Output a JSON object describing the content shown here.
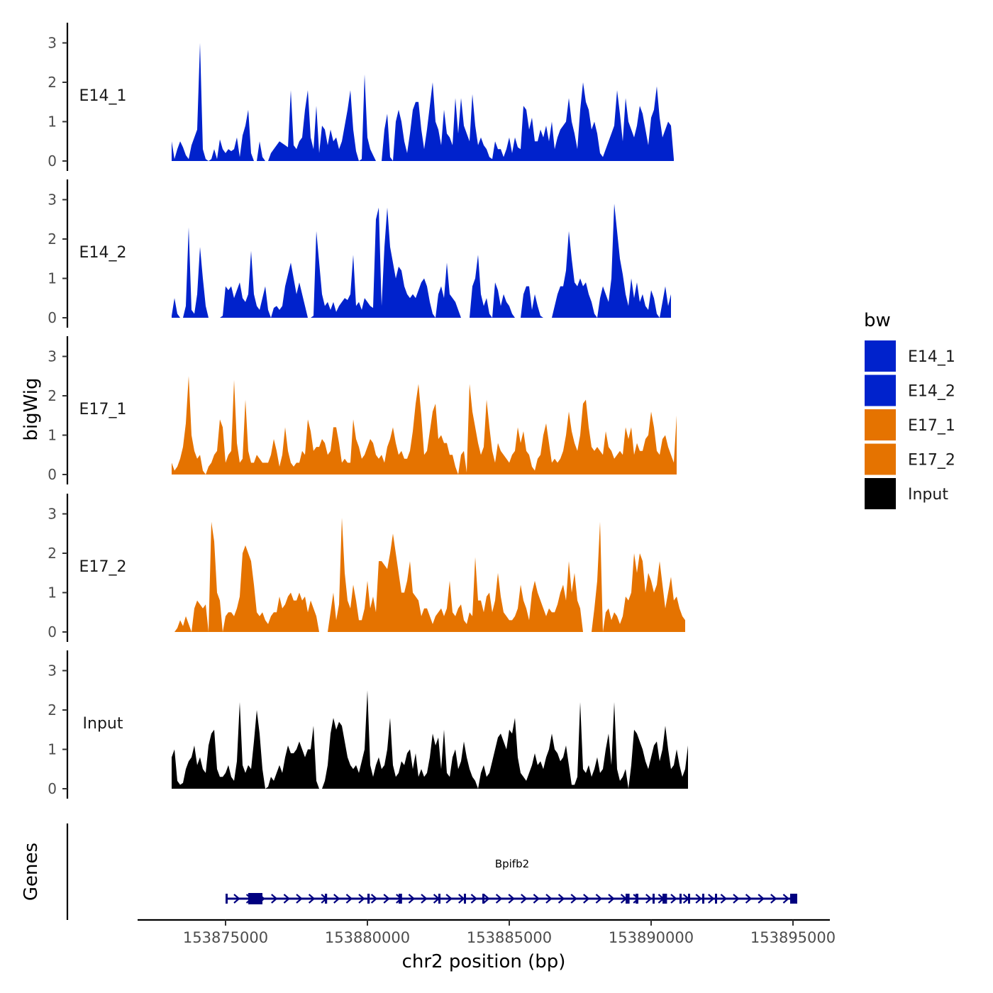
{
  "chart_data": {
    "type": "area",
    "title": "",
    "ylabel": "bigWig",
    "xlabel": "chr2 position (bp)",
    "ylim": [
      0,
      3.5
    ],
    "y_ticks": [
      0,
      1,
      2,
      3
    ],
    "xlim": [
      153871965,
      153895365
    ],
    "x_ticks": [
      153875000,
      153880000,
      153885000,
      153890000,
      153895000
    ],
    "x_tick_labels": [
      "153875000",
      "153880000",
      "153885000",
      "153890000",
      "153895000"
    ],
    "legend": {
      "title": "bw",
      "position": "right",
      "entries": [
        {
          "label": "E14_1",
          "color": "#0022CC"
        },
        {
          "label": "E14_2",
          "color": "#0022CC"
        },
        {
          "label": "E17_1",
          "color": "#E57300"
        },
        {
          "label": "E17_2",
          "color": "#E57300"
        },
        {
          "label": "Input",
          "color": "#000000"
        }
      ]
    },
    "series": [
      {
        "name": "E14_1",
        "color": "#0022CC",
        "x_start": 153873100,
        "step": 100,
        "values": [
          0.5,
          0.05,
          0.3,
          0.5,
          0.35,
          0.15,
          0.05,
          0.4,
          0.6,
          0.8,
          3.0,
          0.3,
          0.05,
          0.0,
          0.05,
          0.3,
          0.05,
          0.55,
          0.3,
          0.2,
          0.3,
          0.25,
          0.3,
          0.6,
          0.1,
          0.65,
          0.9,
          1.3,
          0.2,
          0.0,
          0.0,
          0.5,
          0.1,
          0.0,
          0.0,
          0.2,
          0.3,
          0.4,
          0.5,
          0.45,
          0.4,
          0.35,
          1.8,
          0.4,
          0.3,
          0.5,
          0.6,
          1.3,
          1.8,
          0.6,
          0.3,
          1.4,
          0.2,
          0.9,
          0.8,
          0.4,
          0.8,
          0.5,
          0.6,
          0.3,
          0.5,
          0.9,
          1.3,
          1.8,
          0.8,
          0.25,
          0.0,
          0.05,
          2.2,
          0.6,
          0.3,
          0.15,
          0.0,
          0.0,
          0.0,
          0.8,
          1.2,
          0.1,
          0.0,
          1.0,
          1.3,
          1.0,
          0.5,
          0.2,
          0.7,
          1.3,
          1.5,
          1.5,
          0.8,
          0.3,
          0.8,
          1.4,
          2.0,
          1.0,
          0.8,
          0.4,
          1.3,
          0.7,
          0.6,
          0.4,
          1.6,
          0.7,
          1.6,
          0.9,
          0.7,
          0.5,
          1.7,
          0.9,
          0.4,
          0.6,
          0.4,
          0.3,
          0.1,
          0.05,
          0.5,
          0.3,
          0.3,
          0.1,
          0.3,
          0.6,
          0.2,
          0.6,
          0.35,
          0.3,
          1.4,
          1.3,
          0.8,
          1.1,
          0.5,
          0.5,
          0.8,
          0.6,
          0.9,
          0.5,
          1.0,
          0.3,
          0.6,
          0.8,
          0.9,
          1.0,
          1.6,
          1.0,
          0.7,
          0.3,
          1.3,
          2.0,
          1.5,
          1.3,
          0.8,
          1.0,
          0.7,
          0.2,
          0.1,
          0.3,
          0.5,
          0.7,
          0.9,
          1.8,
          1.2,
          0.5,
          1.6,
          1.0,
          0.8,
          0.6,
          0.9,
          1.4,
          1.2,
          0.8,
          0.4,
          1.1,
          1.3,
          1.9,
          1.1,
          0.6,
          0.8,
          1.0,
          0.9,
          0.05
        ]
      },
      {
        "name": "E14_2",
        "color": "#0022CC",
        "x_start": 153873100,
        "step": 100,
        "values": [
          0.05,
          0.5,
          0.1,
          0.0,
          0.0,
          0.3,
          2.3,
          0.2,
          0.1,
          0.6,
          1.8,
          1.0,
          0.3,
          0.0,
          0.0,
          0.0,
          0.0,
          0.0,
          0.05,
          0.8,
          0.7,
          0.8,
          0.5,
          0.7,
          0.9,
          0.5,
          0.4,
          0.6,
          1.7,
          0.6,
          0.3,
          0.2,
          0.5,
          0.8,
          0.2,
          0.0,
          0.25,
          0.3,
          0.2,
          0.3,
          0.8,
          1.1,
          1.4,
          1.0,
          0.6,
          0.9,
          0.6,
          0.3,
          0.0,
          0.0,
          0.05,
          2.2,
          1.4,
          0.6,
          0.3,
          0.4,
          0.2,
          0.4,
          0.15,
          0.3,
          0.4,
          0.5,
          0.45,
          0.6,
          1.6,
          0.3,
          0.4,
          0.2,
          0.5,
          0.4,
          0.3,
          0.25,
          2.5,
          2.8,
          0.3,
          1.8,
          2.8,
          1.8,
          1.4,
          1.0,
          1.3,
          1.2,
          0.8,
          0.6,
          0.5,
          0.6,
          0.5,
          0.7,
          0.9,
          1.0,
          0.8,
          0.4,
          0.1,
          0.0,
          0.6,
          0.8,
          0.5,
          1.4,
          0.6,
          0.5,
          0.4,
          0.2,
          0.0,
          0.0,
          0.0,
          0.0,
          0.8,
          1.0,
          1.6,
          0.6,
          0.3,
          0.5,
          0.1,
          0.0,
          0.9,
          0.7,
          0.3,
          0.6,
          0.4,
          0.3,
          0.1,
          0.0,
          0.0,
          0.0,
          0.6,
          0.8,
          0.8,
          0.2,
          0.6,
          0.3,
          0.05,
          0.0,
          0.0,
          0.0,
          0.0,
          0.3,
          0.6,
          0.8,
          0.8,
          1.2,
          2.2,
          1.5,
          0.9,
          0.8,
          1.0,
          0.8,
          0.9,
          0.6,
          0.4,
          0.1,
          0.0,
          0.5,
          0.8,
          0.6,
          0.4,
          1.0,
          2.9,
          2.2,
          1.5,
          1.1,
          0.6,
          0.3,
          1.0,
          0.5,
          0.9,
          0.4,
          0.6,
          0.3,
          0.2,
          0.7,
          0.5,
          0.1,
          0.0,
          0.4,
          0.8,
          0.3,
          0.6
        ]
      },
      {
        "name": "E17_1",
        "color": "#E57300",
        "x_start": 153873100,
        "step": 100,
        "values": [
          0.3,
          0.1,
          0.2,
          0.4,
          0.7,
          1.3,
          2.5,
          1.0,
          0.6,
          0.4,
          0.5,
          0.1,
          0.0,
          0.2,
          0.3,
          0.5,
          0.6,
          1.4,
          1.2,
          0.3,
          0.5,
          0.6,
          2.4,
          0.8,
          0.3,
          0.4,
          1.9,
          0.6,
          0.3,
          0.3,
          0.5,
          0.4,
          0.3,
          0.3,
          0.3,
          0.5,
          0.9,
          0.6,
          0.2,
          0.5,
          1.2,
          0.6,
          0.3,
          0.2,
          0.3,
          0.3,
          0.6,
          0.5,
          1.4,
          1.1,
          0.6,
          0.7,
          0.7,
          0.9,
          0.8,
          0.5,
          0.6,
          1.2,
          1.2,
          0.8,
          0.3,
          0.4,
          0.3,
          0.3,
          1.4,
          0.9,
          0.7,
          0.4,
          0.5,
          0.7,
          0.9,
          0.8,
          0.5,
          0.4,
          0.5,
          0.3,
          0.7,
          0.9,
          1.2,
          0.8,
          0.5,
          0.6,
          0.4,
          0.4,
          0.6,
          1.1,
          1.8,
          2.3,
          1.5,
          0.5,
          0.6,
          1.1,
          1.6,
          1.8,
          0.9,
          1.0,
          0.8,
          0.8,
          0.5,
          0.5,
          0.2,
          0.0,
          0.5,
          0.6,
          0.05,
          2.3,
          1.6,
          1.2,
          0.8,
          0.5,
          0.7,
          1.9,
          1.2,
          0.6,
          0.3,
          0.8,
          0.6,
          0.5,
          0.4,
          0.3,
          0.5,
          0.6,
          1.2,
          0.8,
          1.1,
          0.6,
          0.5,
          0.2,
          0.1,
          0.4,
          0.5,
          1.0,
          1.3,
          0.8,
          0.3,
          0.4,
          0.3,
          0.4,
          0.6,
          1.0,
          1.6,
          1.1,
          0.8,
          0.6,
          1.0,
          1.8,
          1.9,
          1.2,
          0.7,
          0.6,
          0.7,
          0.6,
          0.5,
          1.1,
          0.7,
          0.6,
          0.4,
          0.5,
          0.6,
          0.5,
          1.2,
          0.9,
          1.2,
          0.5,
          0.8,
          0.6,
          0.6,
          0.9,
          1.0,
          1.6,
          1.2,
          0.6,
          0.5,
          0.9,
          1.0,
          0.7,
          0.5,
          0.3,
          1.5
        ]
      },
      {
        "name": "E17_2",
        "color": "#E57300",
        "x_start": 153873100,
        "step": 100,
        "values": [
          0.0,
          0.0,
          0.1,
          0.3,
          0.15,
          0.4,
          0.2,
          0.0,
          0.6,
          0.8,
          0.7,
          0.6,
          0.7,
          0.0,
          2.8,
          2.3,
          1.0,
          0.8,
          0.0,
          0.4,
          0.5,
          0.5,
          0.4,
          0.6,
          0.9,
          2.0,
          2.2,
          2.0,
          1.8,
          1.2,
          0.5,
          0.4,
          0.5,
          0.3,
          0.2,
          0.4,
          0.5,
          0.5,
          0.9,
          0.6,
          0.7,
          0.9,
          1.0,
          0.8,
          0.8,
          1.0,
          0.8,
          0.9,
          0.5,
          0.8,
          0.6,
          0.4,
          0.0,
          0.0,
          0.0,
          0.0,
          0.5,
          1.0,
          0.3,
          0.7,
          2.9,
          1.5,
          0.8,
          0.6,
          1.2,
          0.8,
          0.3,
          0.3,
          0.6,
          1.3,
          0.6,
          0.9,
          0.5,
          1.8,
          1.8,
          1.7,
          1.6,
          2.0,
          2.5,
          2.0,
          1.5,
          1.0,
          1.0,
          1.3,
          1.8,
          1.0,
          0.9,
          0.8,
          0.4,
          0.6,
          0.6,
          0.4,
          0.2,
          0.4,
          0.5,
          0.6,
          0.4,
          0.6,
          1.3,
          0.5,
          0.4,
          0.6,
          0.7,
          0.3,
          0.2,
          0.5,
          0.4,
          1.9,
          0.8,
          0.8,
          0.5,
          0.9,
          1.0,
          0.5,
          0.8,
          1.5,
          0.9,
          0.5,
          0.4,
          0.3,
          0.3,
          0.4,
          0.6,
          1.2,
          0.8,
          0.6,
          0.3,
          1.0,
          1.3,
          1.0,
          0.8,
          0.6,
          0.4,
          0.6,
          0.5,
          0.5,
          0.7,
          1.0,
          1.2,
          0.8,
          1.8,
          1.0,
          1.5,
          0.8,
          0.6,
          0.0,
          0.0,
          0.0,
          0.0,
          0.6,
          1.3,
          2.8,
          0.0,
          0.5,
          0.6,
          0.3,
          0.5,
          0.4,
          0.2,
          0.4,
          0.9,
          0.8,
          1.0,
          2.0,
          1.5,
          2.0,
          1.8,
          1.0,
          1.5,
          1.3,
          1.0,
          1.2,
          1.8,
          1.2,
          0.6,
          1.0,
          1.4,
          0.8,
          0.9,
          0.6,
          0.4,
          0.3
        ]
      },
      {
        "name": "Input",
        "color": "#000000",
        "x_start": 153873100,
        "step": 100,
        "values": [
          0.8,
          1.0,
          0.2,
          0.1,
          0.15,
          0.5,
          0.7,
          0.8,
          1.1,
          0.6,
          0.8,
          0.5,
          0.4,
          1.1,
          1.4,
          1.5,
          0.5,
          0.3,
          0.3,
          0.4,
          0.6,
          0.3,
          0.2,
          0.7,
          2.2,
          0.6,
          0.4,
          0.6,
          0.5,
          1.2,
          2.0,
          1.4,
          0.5,
          0.0,
          0.05,
          0.3,
          0.2,
          0.4,
          0.6,
          0.4,
          0.8,
          1.1,
          0.9,
          0.9,
          1.0,
          1.2,
          1.0,
          0.8,
          1.0,
          1.0,
          1.6,
          0.2,
          0.0,
          0.0,
          0.2,
          0.6,
          1.4,
          1.8,
          1.5,
          1.7,
          1.6,
          1.2,
          0.8,
          0.6,
          0.5,
          0.6,
          0.4,
          0.7,
          1.0,
          2.5,
          0.6,
          0.3,
          0.6,
          0.8,
          0.5,
          0.6,
          1.0,
          1.8,
          0.6,
          0.3,
          0.4,
          0.7,
          0.6,
          0.9,
          1.0,
          0.5,
          0.9,
          0.3,
          0.5,
          0.3,
          0.4,
          0.8,
          1.4,
          1.1,
          1.3,
          0.5,
          1.5,
          0.4,
          0.3,
          0.8,
          1.0,
          0.5,
          0.7,
          1.2,
          0.8,
          0.5,
          0.3,
          0.2,
          0.0,
          0.4,
          0.6,
          0.3,
          0.4,
          0.7,
          1.0,
          1.3,
          1.4,
          1.2,
          1.0,
          1.5,
          1.4,
          1.8,
          0.8,
          0.4,
          0.3,
          0.2,
          0.4,
          0.6,
          0.9,
          0.6,
          0.7,
          0.5,
          0.8,
          1.0,
          1.4,
          1.0,
          0.9,
          0.7,
          0.8,
          1.1,
          0.6,
          0.1,
          0.1,
          0.3,
          2.2,
          0.5,
          0.4,
          0.6,
          0.3,
          0.5,
          0.8,
          0.4,
          0.5,
          1.0,
          1.4,
          0.6,
          2.2,
          0.5,
          0.2,
          0.3,
          0.5,
          0.0,
          0.6,
          1.5,
          1.4,
          1.2,
          1.0,
          0.7,
          0.5,
          0.8,
          1.1,
          1.2,
          0.7,
          1.0,
          1.6,
          1.0,
          0.5,
          0.6,
          1.0,
          0.6,
          0.3,
          0.5,
          1.1
        ]
      }
    ],
    "genes": {
      "panel_label": "Genes",
      "name": "Bpifb2",
      "strand": "+",
      "start": 153875000,
      "end": 153895000,
      "exons": [
        [
          153875000,
          153875060
        ],
        [
          153875800,
          153876300
        ],
        [
          153878500,
          153878580
        ],
        [
          153880000,
          153880080
        ],
        [
          153881100,
          153881220
        ],
        [
          153882500,
          153882560
        ],
        [
          153883400,
          153883460
        ],
        [
          153884050,
          153884110
        ],
        [
          153889100,
          153889240
        ],
        [
          153889450,
          153889550
        ],
        [
          153890050,
          153890120
        ],
        [
          153890400,
          153890560
        ],
        [
          153891000,
          153891060
        ],
        [
          153891300,
          153891360
        ],
        [
          153891800,
          153891860
        ],
        [
          153892250,
          153892320
        ],
        [
          153894900,
          153895150
        ]
      ]
    }
  }
}
